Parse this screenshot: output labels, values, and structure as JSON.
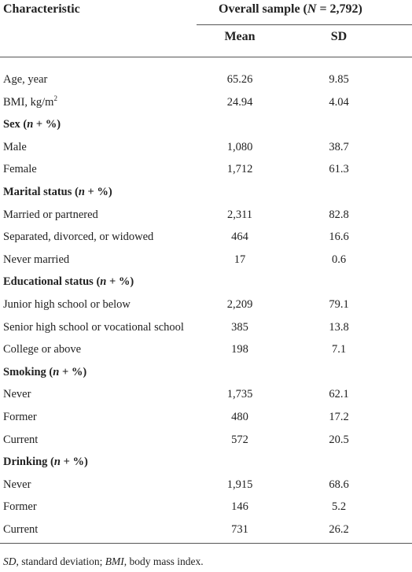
{
  "header": {
    "characteristic": "Characteristic",
    "group": [
      "Overall sample (",
      "N",
      " = 2,792)"
    ],
    "mean": "Mean",
    "sd": "SD"
  },
  "rows": [
    {
      "label": "Age, year",
      "mean": "65.26",
      "sd": "9.85"
    },
    {
      "label": "BMI, kg/m",
      "label_sup": "2",
      "mean": "24.94",
      "sd": "4.04"
    },
    {
      "label": [
        "Sex (",
        "n",
        " + %)"
      ]
    },
    {
      "label": "Male",
      "mean": "1,080",
      "sd": "38.7"
    },
    {
      "label": "Female",
      "mean": "1,712",
      "sd": "61.3"
    },
    {
      "label": [
        "Marital status (",
        "n",
        " + %)"
      ]
    },
    {
      "label": "Married or partnered",
      "mean": "2,311",
      "sd": "82.8"
    },
    {
      "label": "Separated, divorced, or widowed",
      "mean": "464",
      "sd": "16.6"
    },
    {
      "label": "Never married",
      "mean": "17",
      "sd": "0.6"
    },
    {
      "label": [
        "Educational status (",
        "n",
        " + %)"
      ]
    },
    {
      "label": "Junior high school or below",
      "mean": "2,209",
      "sd": "79.1"
    },
    {
      "label": "Senior high school or vocational school",
      "mean": "385",
      "sd": "13.8"
    },
    {
      "label": "College or above",
      "mean": "198",
      "sd": "7.1"
    },
    {
      "label": [
        "Smoking (",
        "n",
        " + %)"
      ]
    },
    {
      "label": "Never",
      "mean": "1,735",
      "sd": "62.1"
    },
    {
      "label": "Former",
      "mean": "480",
      "sd": "17.2"
    },
    {
      "label": "Current",
      "mean": "572",
      "sd": "20.5"
    },
    {
      "label": [
        "Drinking (",
        "n",
        " + %)"
      ]
    },
    {
      "label": "Never",
      "mean": "1,915",
      "sd": "68.6"
    },
    {
      "label": "Former",
      "mean": "146",
      "sd": "5.2"
    },
    {
      "label": "Current",
      "mean": "731",
      "sd": "26.2"
    }
  ],
  "footnote": [
    "SD",
    ", standard deviation; ",
    "BMI",
    ", body mass index."
  ]
}
